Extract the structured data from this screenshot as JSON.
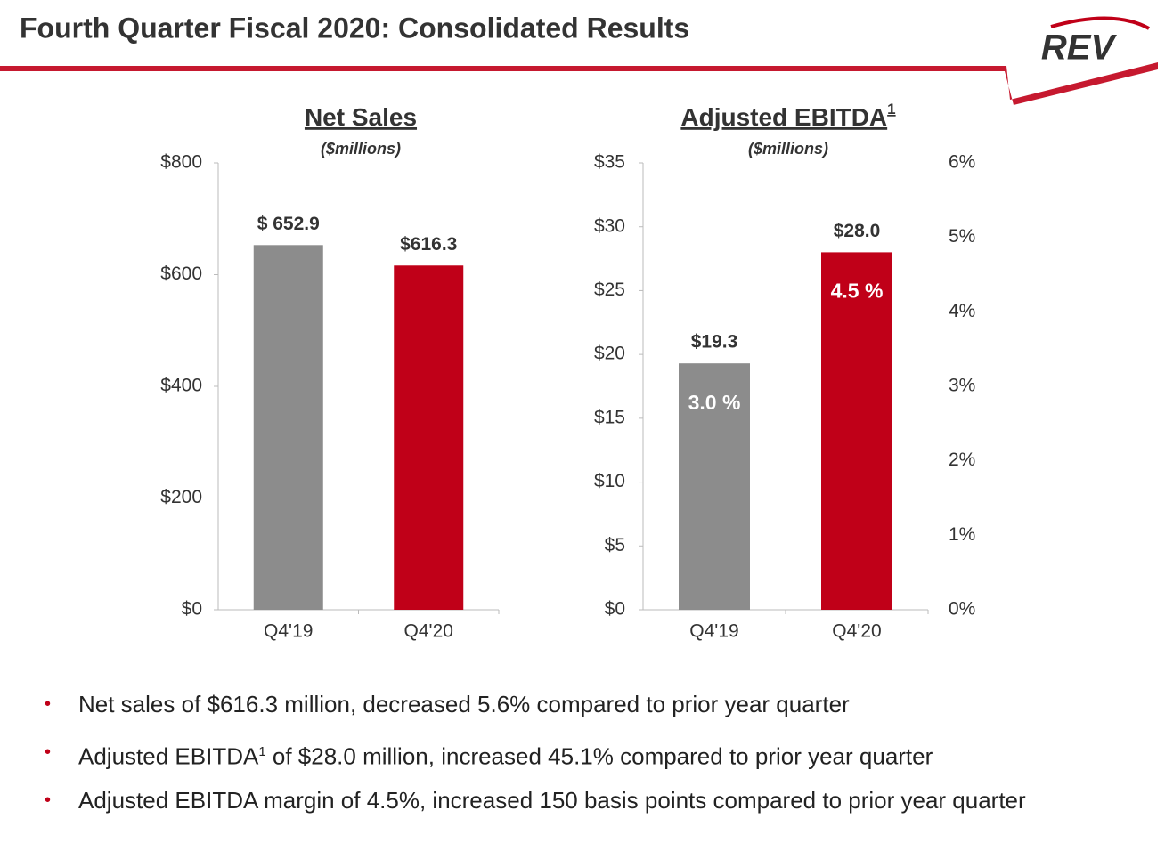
{
  "title": "Fourth Quarter Fiscal 2020: Consolidated Results",
  "logo": "REV",
  "chart_data": [
    {
      "type": "bar",
      "title": "Net Sales",
      "subtitle": "($millions)",
      "categories": [
        "Q4'19",
        "Q4'20"
      ],
      "values": [
        652.9,
        616.3
      ],
      "value_labels": [
        "$ 652.9",
        "$616.3"
      ],
      "colors": [
        "#8c8c8c",
        "#c00018"
      ],
      "ylim": [
        0,
        800
      ],
      "yticks": [
        {
          "value": 0,
          "label": "$0"
        },
        {
          "value": 200,
          "label": "$200"
        },
        {
          "value": 400,
          "label": "$400"
        },
        {
          "value": 600,
          "label": "$600"
        },
        {
          "value": 800,
          "label": "$800"
        }
      ]
    },
    {
      "type": "bar",
      "title": "Adjusted EBITDA",
      "title_sup": "1",
      "subtitle": "($millions)",
      "categories": [
        "Q4'19",
        "Q4'20"
      ],
      "values": [
        19.3,
        28.0
      ],
      "value_labels": [
        "$19.3",
        "$28.0"
      ],
      "colors": [
        "#8c8c8c",
        "#c00018"
      ],
      "ylim": [
        0,
        35
      ],
      "yticks": [
        {
          "value": 0,
          "label": "$0"
        },
        {
          "value": 5,
          "label": "$5"
        },
        {
          "value": 10,
          "label": "$10"
        },
        {
          "value": 15,
          "label": "$15"
        },
        {
          "value": 20,
          "label": "$20"
        },
        {
          "value": 25,
          "label": "$25"
        },
        {
          "value": 30,
          "label": "$30"
        },
        {
          "value": 35,
          "label": "$35"
        }
      ],
      "y2_values": [
        3.0,
        4.5
      ],
      "y2_value_labels": [
        "3.0 %",
        "4.5 %"
      ],
      "y2lim": [
        0,
        6
      ],
      "y2ticks": [
        {
          "value": 0,
          "label": "0%"
        },
        {
          "value": 1,
          "label": "1%"
        },
        {
          "value": 2,
          "label": "2%"
        },
        {
          "value": 3,
          "label": "3%"
        },
        {
          "value": 4,
          "label": "4%"
        },
        {
          "value": 5,
          "label": "5%"
        },
        {
          "value": 6,
          "label": "6%"
        }
      ]
    }
  ],
  "bullets": [
    {
      "text": "Net sales of $616.3 million, decreased 5.6% compared to prior year quarter"
    },
    {
      "text": "Adjusted EBITDA",
      "sup": "1",
      "rest": " of $28.0 million, increased 45.1% compared to prior year quarter"
    },
    {
      "text": "Adjusted EBITDA margin of 4.5%, increased 150 basis points compared to prior year quarter"
    }
  ]
}
